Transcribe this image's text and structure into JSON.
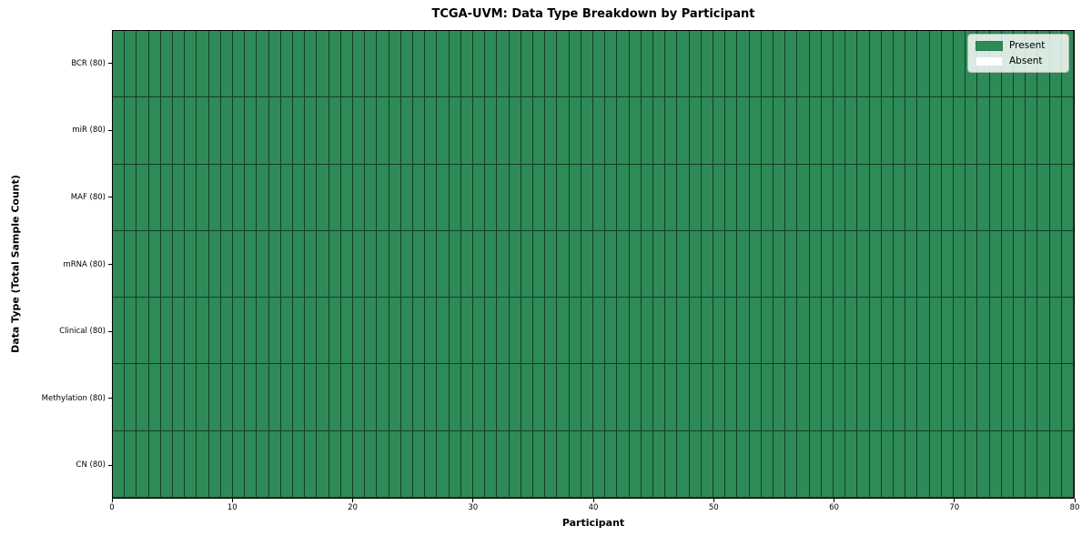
{
  "chart_data": {
    "type": "heatmap",
    "title": "TCGA-UVM: Data Type Breakdown by Participant",
    "xlabel": "Participant",
    "ylabel": "Data Type (Total Sample Count)",
    "xlim": [
      0,
      80
    ],
    "x_ticks": [
      0,
      10,
      20,
      30,
      40,
      50,
      60,
      70,
      80
    ],
    "n_participants": 80,
    "categories_top_to_bottom": [
      "BCR (80)",
      "miR (80)",
      "MAF (80)",
      "mRNA (80)",
      "Clinical (80)",
      "Methylation (80)",
      "CN (80)"
    ],
    "rows": [
      {
        "label": "BCR (80)",
        "data_type": "BCR",
        "total_samples": 80,
        "present_count": 80,
        "absent_count": 0
      },
      {
        "label": "miR (80)",
        "data_type": "miR",
        "total_samples": 80,
        "present_count": 80,
        "absent_count": 0
      },
      {
        "label": "MAF (80)",
        "data_type": "MAF",
        "total_samples": 80,
        "present_count": 80,
        "absent_count": 0
      },
      {
        "label": "mRNA (80)",
        "data_type": "mRNA",
        "total_samples": 80,
        "present_count": 80,
        "absent_count": 0
      },
      {
        "label": "Clinical (80)",
        "data_type": "Clinical",
        "total_samples": 80,
        "present_count": 80,
        "absent_count": 0
      },
      {
        "label": "Methylation (80)",
        "data_type": "Methylation",
        "total_samples": 80,
        "present_count": 80,
        "absent_count": 0
      },
      {
        "label": "CN (80)",
        "data_type": "CN",
        "total_samples": 80,
        "present_count": 80,
        "absent_count": 0
      }
    ],
    "legend": [
      {
        "label": "Present",
        "color": "#2e8b57"
      },
      {
        "label": "Absent",
        "color": "#ffffff"
      }
    ],
    "legend_position": "upper right",
    "grid": true,
    "colors": {
      "present": "#2e8b57",
      "absent": "#ffffff",
      "cell_edge": "rgba(0,0,0,0.55)",
      "axis": "#000000",
      "background": "#ffffff"
    }
  }
}
